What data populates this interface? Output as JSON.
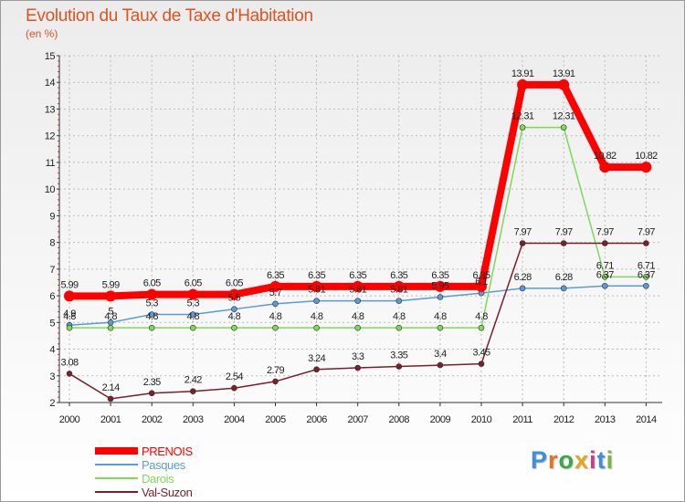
{
  "title": "Evolution du Taux de Taxe d'Habitation",
  "unit_label": "(en %)",
  "logo": {
    "text": "Proxiti",
    "colors": [
      "#3c8fd8",
      "#e8731a",
      "#3aa84a",
      "#e8a51a",
      "#d13a86",
      "#3c8fd8",
      "#7cb342"
    ]
  },
  "chart_data": {
    "type": "line",
    "title": "Evolution du Taux de Taxe d'Habitation",
    "ylabel": "(en %)",
    "xlabel": "",
    "x": [
      "2000",
      "2001",
      "2002",
      "2003",
      "2004",
      "2005",
      "2006",
      "2007",
      "2008",
      "2009",
      "2010",
      "2011",
      "2012",
      "2013",
      "2014"
    ],
    "ylim": [
      2,
      15
    ],
    "yticks": [
      2,
      3,
      4,
      5,
      6,
      7,
      8,
      9,
      10,
      11,
      12,
      13,
      14,
      15
    ],
    "grid": true,
    "legend": "bottom-left",
    "series": [
      {
        "name": "PRENOIS",
        "color": "#ff0000",
        "width": 8,
        "values": [
          5.99,
          5.99,
          6.05,
          6.05,
          6.05,
          6.35,
          6.35,
          6.35,
          6.35,
          6.35,
          6.35,
          13.91,
          13.91,
          10.82,
          10.82
        ],
        "labels": [
          "5.99",
          "5.99",
          "6.05",
          "6.05",
          "6.05",
          "6.35",
          "6.35",
          "6.35",
          "6.35",
          "6.35",
          "6.35",
          "13.91",
          "13.91",
          "10.82",
          "10.82"
        ]
      },
      {
        "name": "Pasques",
        "color": "#5b9bd5",
        "width": 1.5,
        "values": [
          4.9,
          5,
          5.3,
          5.3,
          5.5,
          5.7,
          5.81,
          5.81,
          5.81,
          5.95,
          6.1,
          6.28,
          6.28,
          6.37,
          6.37
        ],
        "labels": [
          "4.9",
          "5",
          "5.3",
          "5.3",
          "5.5",
          "5.7",
          "5.81",
          "5.81",
          "5.81",
          "5.95",
          "6.1",
          "6.28",
          "6.28",
          "6.37",
          "6.37"
        ]
      },
      {
        "name": "Darois",
        "color": "#7ed957",
        "width": 1.5,
        "values": [
          4.8,
          4.8,
          4.8,
          4.8,
          4.8,
          4.8,
          4.8,
          4.8,
          4.8,
          4.8,
          4.8,
          12.31,
          12.31,
          6.71,
          6.71
        ],
        "labels": [
          "4.8",
          "4.8",
          "4.8",
          "4.8",
          "4.8",
          "4.8",
          "4.8",
          "4.8",
          "4.8",
          "4.8",
          "4.8",
          "12.31",
          "12.31",
          "6.71",
          "6.71"
        ]
      },
      {
        "name": "Val-Suzon",
        "color": "#7a1f2b",
        "width": 1.5,
        "values": [
          3.08,
          2.14,
          2.35,
          2.42,
          2.54,
          2.79,
          3.24,
          3.3,
          3.35,
          3.4,
          3.45,
          7.97,
          7.97,
          7.97,
          7.97
        ],
        "labels": [
          "3.08",
          "2.14",
          "2.35",
          "2.42",
          "2.54",
          "2.79",
          "3.24",
          "3.3",
          "3.35",
          "3.4",
          "3.45",
          "7.97",
          "7.97",
          "7.97",
          "7.97"
        ]
      }
    ]
  }
}
